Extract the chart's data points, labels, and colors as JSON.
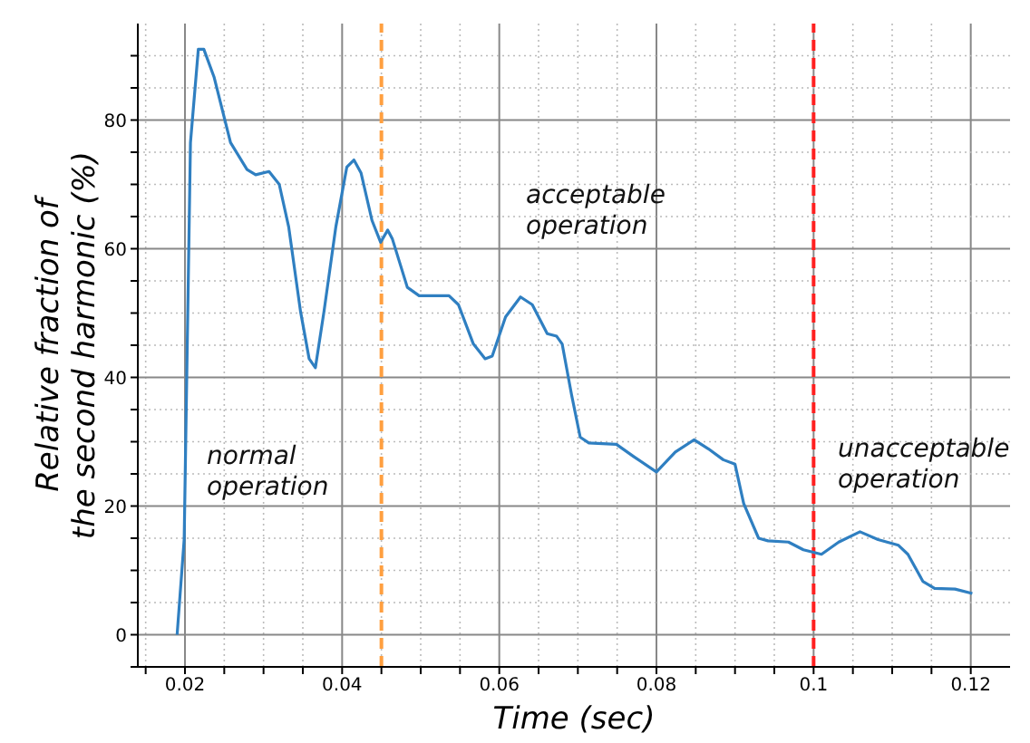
{
  "chart_data": {
    "type": "line",
    "xlabel": "Time (sec)",
    "ylabel": "Relative fraction of\nthe second harmonic (%)",
    "x": [
      0.019,
      0.0199,
      0.0207,
      0.0217,
      0.0224,
      0.0237,
      0.0258,
      0.0279,
      0.029,
      0.0307,
      0.032,
      0.0332,
      0.0347,
      0.0358,
      0.0366,
      0.0377,
      0.0392,
      0.0406,
      0.0415,
      0.0424,
      0.0438,
      0.0449,
      0.0458,
      0.0464,
      0.0483,
      0.0498,
      0.0536,
      0.0548,
      0.0567,
      0.0582,
      0.0591,
      0.0608,
      0.0627,
      0.0642,
      0.0661,
      0.0673,
      0.068,
      0.0692,
      0.0703,
      0.0714,
      0.0749,
      0.0771,
      0.08,
      0.0824,
      0.0848,
      0.0866,
      0.0885,
      0.09,
      0.0911,
      0.093,
      0.0942,
      0.0968,
      0.0987,
      0.101,
      0.1032,
      0.1059,
      0.1082,
      0.1108,
      0.112,
      0.1139,
      0.1154,
      0.118,
      0.1202
    ],
    "series": [
      {
        "color": "#2f7fc1",
        "values": [
          0,
          14.8,
          76.5,
          91,
          91,
          86.7,
          76.5,
          72.3,
          71.5,
          72,
          70,
          63.4,
          50.3,
          42.9,
          41.5,
          50.3,
          63.4,
          72.7,
          73.8,
          71.8,
          64.4,
          61,
          62.9,
          61.5,
          54,
          52.7,
          52.7,
          51.3,
          45.2,
          42.9,
          43.3,
          49.4,
          52.5,
          51.3,
          46.8,
          46.4,
          45.2,
          37.3,
          30.7,
          29.8,
          29.6,
          27.7,
          25.3,
          28.4,
          30.3,
          28.9,
          27.2,
          26.5,
          20.4,
          15,
          14.6,
          14.4,
          13.2,
          12.5,
          14.4,
          16,
          14.8,
          13.9,
          12.5,
          8.3,
          7.2,
          7.1,
          6.4
        ]
      }
    ],
    "xlim": [
      0.014,
      0.125
    ],
    "ylim": [
      -5,
      95
    ],
    "xticks": [
      {
        "value": 0.015,
        "label": null
      },
      0.02,
      {
        "value": 0.025,
        "label": null
      },
      0.04,
      {
        "value": 0.03,
        "label": null
      },
      {
        "value": 0.035,
        "label": null
      },
      {
        "value": 0.045,
        "label": null
      },
      {
        "value": 0.05,
        "label": null
      },
      {
        "value": 0.055,
        "label": null
      },
      0.06,
      {
        "value": 0.065,
        "label": null
      },
      {
        "value": 0.07,
        "label": null
      },
      {
        "value": 0.075,
        "label": null
      },
      0.08,
      {
        "value": 0.085,
        "label": null
      },
      {
        "value": 0.09,
        "label": null
      },
      {
        "value": 0.095,
        "label": null
      },
      0.1,
      {
        "value": 0.105,
        "label": null
      },
      {
        "value": 0.11,
        "label": null
      },
      {
        "value": 0.115,
        "label": null
      },
      0.12
    ],
    "yticks": [
      {
        "value": -5,
        "label": null
      },
      0,
      {
        "value": 5,
        "label": null
      },
      {
        "value": 10,
        "label": null
      },
      {
        "value": 15,
        "label": null
      },
      20,
      {
        "value": 25,
        "label": null
      },
      {
        "value": 30,
        "label": null
      },
      {
        "value": 35,
        "label": null
      },
      40,
      {
        "value": 45,
        "label": null
      },
      {
        "value": 50,
        "label": null
      },
      {
        "value": 55,
        "label": null
      },
      60,
      {
        "value": 65,
        "label": null
      },
      {
        "value": 70,
        "label": null
      },
      {
        "value": 75,
        "label": null
      },
      80,
      {
        "value": 85,
        "label": null
      },
      {
        "value": 90,
        "label": null
      }
    ],
    "grid": true,
    "marker": "none",
    "line_style": "solid",
    "ref_lines": [
      {
        "axis": "x",
        "value": 0.045,
        "color": "#ff9f40",
        "line_style": "dashed"
      },
      {
        "axis": "x",
        "value": 0.1,
        "color": "#ff2020",
        "line_style": "dashed"
      }
    ],
    "annotations": [
      "normal\noperation",
      "acceptable\noperation",
      "unacceptable\noperation"
    ]
  }
}
